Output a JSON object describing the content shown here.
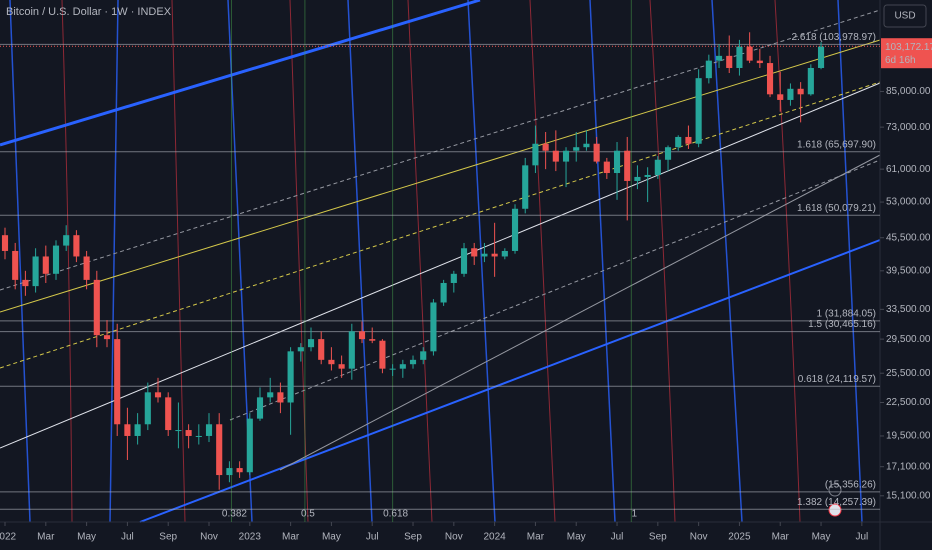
{
  "chart_data": {
    "type": "candlestick",
    "title": "Bitcoin / U.S. Dollar · 1W · INDEX",
    "currency": "USD",
    "log": true,
    "up_color": "#26a69a",
    "down_color": "#ef5350",
    "ylim": [
      13500,
      125700
    ],
    "yticks": [
      {
        "value": 85000,
        "label": "85,000.00"
      },
      {
        "value": 73000,
        "label": "73,000.00"
      },
      {
        "value": 61000,
        "label": "61,000.00"
      },
      {
        "value": 53000,
        "label": "53,000.00"
      },
      {
        "value": 45500,
        "label": "45,500.00"
      },
      {
        "value": 39500,
        "label": "39,500.00"
      },
      {
        "value": 33500,
        "label": "33,500.00"
      },
      {
        "value": 29500,
        "label": "29,500.00"
      },
      {
        "value": 25500,
        "label": "25,500.00"
      },
      {
        "value": 22500,
        "label": "22,500.00"
      },
      {
        "value": 19500,
        "label": "19,500.00"
      },
      {
        "value": 17100,
        "label": "17,100.00"
      },
      {
        "value": 15100,
        "label": "15,100.00"
      }
    ],
    "xlim": [
      -0.245,
      42.89
    ],
    "xticks": [
      {
        "value": 0,
        "label": "2022"
      },
      {
        "value": 2,
        "label": "Mar"
      },
      {
        "value": 4,
        "label": "May"
      },
      {
        "value": 6,
        "label": "Jul"
      },
      {
        "value": 8,
        "label": "Sep"
      },
      {
        "value": 10,
        "label": "Nov"
      },
      {
        "value": 12,
        "label": "2023"
      },
      {
        "value": 14,
        "label": "Mar"
      },
      {
        "value": 16,
        "label": "May"
      },
      {
        "value": 18,
        "label": "Jul"
      },
      {
        "value": 20,
        "label": "Sep"
      },
      {
        "value": 22,
        "label": "Nov"
      },
      {
        "value": 24,
        "label": "2024"
      },
      {
        "value": 26,
        "label": "Mar"
      },
      {
        "value": 28,
        "label": "May"
      },
      {
        "value": 30,
        "label": "Jul"
      },
      {
        "value": 32,
        "label": "Sep"
      },
      {
        "value": 34,
        "label": "Nov"
      },
      {
        "value": 36,
        "label": "2025"
      },
      {
        "value": 38,
        "label": "Mar"
      },
      {
        "value": 40,
        "label": "May"
      },
      {
        "value": 42,
        "label": "Jul"
      }
    ],
    "x": [
      0,
      0.5,
      1,
      1.5,
      2,
      2.5,
      3,
      3.5,
      4,
      4.5,
      5,
      5.5,
      6,
      6.5,
      7,
      7.5,
      8,
      8.5,
      9,
      9.5,
      10,
      10.5,
      11,
      11.5,
      12,
      12.5,
      13,
      13.5,
      14,
      14.5,
      15,
      15.5,
      16,
      16.5,
      17,
      17.5,
      18,
      18.5,
      19,
      19.5,
      20,
      20.5,
      21,
      21.5,
      22,
      22.5,
      23,
      23.5,
      24,
      24.5,
      25,
      25.5,
      26,
      26.5,
      27,
      27.5,
      28,
      28.5,
      29,
      29.5,
      30,
      30.5,
      31,
      31.5,
      32,
      32.5,
      33,
      33.5,
      34,
      34.5,
      35,
      35.5,
      36,
      36.5,
      37,
      37.5,
      38,
      38.5,
      39,
      39.5,
      40
    ],
    "ohlc": [
      [
        46000,
        47500,
        41500,
        43000
      ],
      [
        43000,
        44500,
        36500,
        38000
      ],
      [
        38000,
        39500,
        35500,
        37000
      ],
      [
        37000,
        43500,
        36000,
        42000
      ],
      [
        42000,
        44000,
        37500,
        39000
      ],
      [
        39000,
        45000,
        38000,
        44000
      ],
      [
        44000,
        48000,
        43000,
        46000
      ],
      [
        46000,
        47000,
        41000,
        42000
      ],
      [
        42000,
        43000,
        36500,
        38000
      ],
      [
        38000,
        39500,
        28500,
        30000
      ],
      [
        30000,
        32000,
        28500,
        29500
      ],
      [
        29500,
        31500,
        19500,
        20500
      ],
      [
        20500,
        22000,
        17600,
        19500
      ],
      [
        19500,
        21500,
        18800,
        20500
      ],
      [
        20500,
        24500,
        20000,
        23500
      ],
      [
        23500,
        25000,
        22500,
        23000
      ],
      [
        23000,
        23500,
        19500,
        20000
      ],
      [
        20000,
        22500,
        18500,
        20000
      ],
      [
        20000,
        20500,
        18500,
        19500
      ],
      [
        19500,
        20500,
        18800,
        19500
      ],
      [
        19500,
        21500,
        19000,
        20500
      ],
      [
        20500,
        21500,
        15500,
        16500
      ],
      [
        16500,
        17500,
        16000,
        17000
      ],
      [
        17000,
        17500,
        16300,
        16700
      ],
      [
        16700,
        21500,
        16500,
        21000
      ],
      [
        21000,
        24000,
        20800,
        23000
      ],
      [
        23000,
        25000,
        22500,
        23500
      ],
      [
        23500,
        24500,
        21500,
        22500
      ],
      [
        22500,
        28500,
        19600,
        28000
      ],
      [
        28000,
        29000,
        26800,
        28500
      ],
      [
        28500,
        31000,
        28000,
        29500
      ],
      [
        29500,
        30500,
        26500,
        27000
      ],
      [
        27000,
        28500,
        25800,
        26500
      ],
      [
        26500,
        27500,
        25000,
        26000
      ],
      [
        26000,
        31500,
        24800,
        30500
      ],
      [
        30500,
        31800,
        29000,
        29500
      ],
      [
        29500,
        31000,
        29000,
        29300
      ],
      [
        29300,
        29500,
        25500,
        26000
      ],
      [
        26000,
        26500,
        25200,
        26000
      ],
      [
        26000,
        27000,
        25000,
        26500
      ],
      [
        26500,
        27500,
        26000,
        27000
      ],
      [
        27000,
        28500,
        26500,
        28000
      ],
      [
        28000,
        35000,
        27500,
        34500
      ],
      [
        34500,
        38000,
        34000,
        37500
      ],
      [
        37500,
        39500,
        36000,
        39000
      ],
      [
        39000,
        44500,
        38500,
        43500
      ],
      [
        43500,
        44500,
        40500,
        42000
      ],
      [
        42000,
        44500,
        41000,
        42500
      ],
      [
        42500,
        48500,
        38500,
        42000
      ],
      [
        42000,
        43500,
        41500,
        43000
      ],
      [
        43000,
        52500,
        42500,
        51500
      ],
      [
        51500,
        64000,
        50500,
        62000
      ],
      [
        62000,
        73500,
        60000,
        68000
      ],
      [
        68000,
        71500,
        61000,
        66000
      ],
      [
        66000,
        72000,
        60500,
        63000
      ],
      [
        63000,
        67000,
        56500,
        66000
      ],
      [
        66000,
        71500,
        63000,
        67000
      ],
      [
        67000,
        72000,
        66000,
        68000
      ],
      [
        68000,
        70000,
        62500,
        63000
      ],
      [
        63000,
        64000,
        58500,
        60000
      ],
      [
        60000,
        68500,
        53500,
        66000
      ],
      [
        66000,
        70000,
        49000,
        58000
      ],
      [
        58000,
        62000,
        56000,
        59000
      ],
      [
        59000,
        61500,
        53000,
        59500
      ],
      [
        59500,
        64500,
        58500,
        63500
      ],
      [
        63500,
        67500,
        60500,
        67000
      ],
      [
        67000,
        70500,
        66000,
        70000
      ],
      [
        70000,
        73500,
        66500,
        68000
      ],
      [
        68000,
        93500,
        67000,
        90000
      ],
      [
        90000,
        99500,
        88000,
        97000
      ],
      [
        97000,
        104000,
        94000,
        99000
      ],
      [
        99000,
        108000,
        92000,
        94000
      ],
      [
        94000,
        106000,
        91000,
        103000
      ],
      [
        103000,
        109500,
        96000,
        97000
      ],
      [
        97000,
        102000,
        94000,
        96000
      ],
      [
        96000,
        99000,
        83000,
        84000
      ],
      [
        84000,
        92500,
        78000,
        82000
      ],
      [
        82000,
        88000,
        80000,
        86000
      ],
      [
        86000,
        88500,
        74500,
        84000
      ],
      [
        84000,
        95500,
        83500,
        94000
      ],
      [
        94000,
        105000,
        93500,
        103000
      ]
    ],
    "last_price": {
      "value": 103172.17,
      "label": "103,172.17"
    },
    "countdown": "6d 16h",
    "fib_levels": [
      {
        "value": 103978.97,
        "label": "2.618 (103,978.97)"
      },
      {
        "value": 65697.9,
        "label": "1.618 (65,697.90)"
      },
      {
        "value": 50079.21,
        "label": "1.618 (50,079.21)"
      },
      {
        "value": 31884.05,
        "label": "1 (31,884.05)"
      },
      {
        "value": 30465.16,
        "label": "1.5 (30,465.16)"
      },
      {
        "value": 24119.57,
        "label": "0.618 (24,119.57)"
      },
      {
        "value": 15356.26,
        "label": "(15,356.26)"
      },
      {
        "value": 14257.39,
        "label": "1.382 (14,257.39)"
      }
    ],
    "time_fib": [
      {
        "value": 11.1,
        "label": "0.382"
      },
      {
        "value": 14.7,
        "label": "0.5"
      },
      {
        "value": 19.0,
        "label": "0.618"
      },
      {
        "value": 30.7,
        "label": "1"
      }
    ]
  }
}
